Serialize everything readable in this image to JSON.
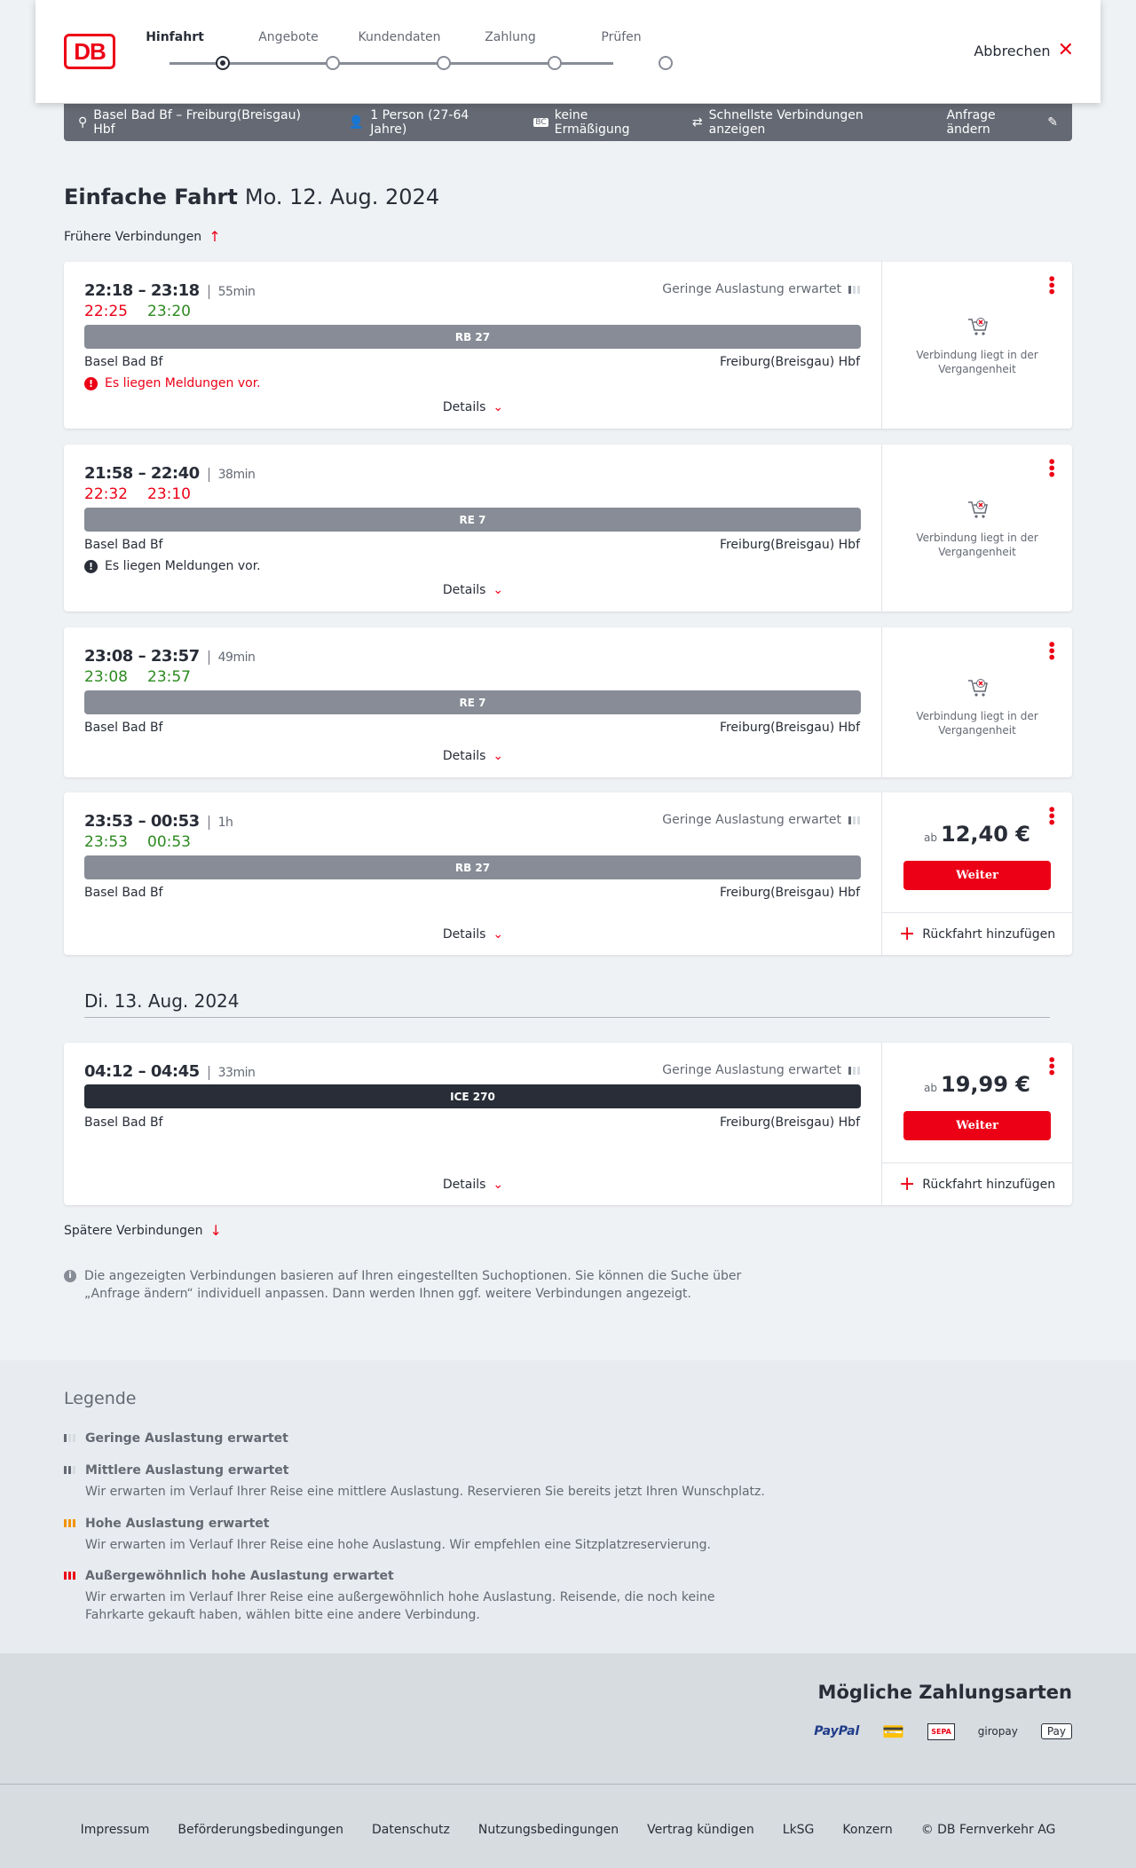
{
  "header": {
    "logo": "DB",
    "steps": [
      "Hinfahrt",
      "Angebote",
      "Kundendaten",
      "Zahlung",
      "Prüfen"
    ],
    "active_step": 0,
    "cancel": "Abbrechen"
  },
  "infobar": {
    "route": "Basel Bad Bf – Freiburg(Breisgau) Hbf",
    "persons": "1 Person (27-64 Jahre)",
    "discount": "keine Ermäßigung",
    "fastest": "Schnellste Verbindungen anzeigen",
    "edit": "Anfrage ändern"
  },
  "title": {
    "type": "Einfache Fahrt",
    "date": "Mo. 12. Aug. 2024"
  },
  "earlier": "Frühere Verbindungen",
  "later": "Spätere Verbindungen",
  "common": {
    "from": "Basel Bad Bf",
    "to": "Freiburg(Breisgau) Hbf",
    "details": "Details",
    "past": "Verbindung liegt in der Vergangenheit",
    "load_low": "Geringe Auslastung erwartet",
    "price_prefix": "ab",
    "weiter": "Weiter",
    "return": "Rückfahrt hinzufügen"
  },
  "connections": [
    {
      "times": "22:18 – 23:18",
      "duration": "55min",
      "rt_dep": "22:25",
      "rt_arr": "23:20",
      "rt_dep_color": "red",
      "rt_arr_color": "green",
      "train": "RB 27",
      "load": "Geringe Auslastung erwartet",
      "message": "Es liegen Meldungen vor.",
      "message_color": "#ec0016",
      "status": "past"
    },
    {
      "times": "21:58 – 22:40",
      "duration": "38min",
      "rt_dep": "22:32",
      "rt_arr": "23:10",
      "rt_dep_color": "red",
      "rt_arr_color": "red",
      "train": "RE 7",
      "message": "Es liegen Meldungen vor.",
      "message_color": "#282d37",
      "status": "past"
    },
    {
      "times": "23:08 – 23:57",
      "duration": "49min",
      "rt_dep": "23:08",
      "rt_arr": "23:57",
      "rt_dep_color": "green",
      "rt_arr_color": "green",
      "train": "RE 7",
      "status": "past"
    },
    {
      "times": "23:53 – 00:53",
      "duration": "1h",
      "rt_dep": "23:53",
      "rt_arr": "00:53",
      "rt_dep_color": "green",
      "rt_arr_color": "green",
      "train": "RB 27",
      "load": "Geringe Auslastung erwartet",
      "price": "12,40 €",
      "status": "bookable"
    }
  ],
  "date2": "Di. 13. Aug. 2024",
  "connection5": {
    "times": "04:12 – 04:45",
    "duration": "33min",
    "train": "ICE 270",
    "load": "Geringe Auslastung erwartet",
    "price": "19,99 €"
  },
  "note": "Die angezeigten Verbindungen basieren auf Ihren eingestellten Suchoptionen. Sie können die Suche über „Anfrage ändern“ individuell anpassen. Dann werden Ihnen ggf. weitere Verbindungen angezeigt.",
  "legend": {
    "title": "Legende",
    "items": [
      {
        "title": "Geringe Auslastung erwartet",
        "desc": ""
      },
      {
        "title": "Mittlere Auslastung erwartet",
        "desc": "Wir erwarten im Verlauf Ihrer Reise eine mittlere Auslastung. Reservieren Sie bereits jetzt Ihren Wunschplatz."
      },
      {
        "title": "Hohe Auslastung erwartet",
        "desc": "Wir erwarten im Verlauf Ihrer Reise eine hohe Auslastung. Wir empfehlen eine Sitzplatzreservierung."
      },
      {
        "title": "Außergewöhnlich hohe Auslastung erwartet",
        "desc": "Wir erwarten im Verlauf Ihrer Reise eine außergewöhnlich hohe Auslastung. Reisende, die noch keine Fahrkarte gekauft haben, wählen bitte eine andere Verbindung."
      }
    ]
  },
  "payment": {
    "title": "Mögliche Zahlungsarten",
    "methods": [
      "PayPal",
      "Kreditkarte",
      "SEPA",
      "giropay",
      "Pay"
    ]
  },
  "footer": [
    "Impressum",
    "Beförderungsbedingungen",
    "Datenschutz",
    "Nutzungsbedingungen",
    "Vertrag kündigen",
    "LkSG",
    "Konzern",
    "© DB Fernverkehr AG"
  ],
  "colors": {
    "brand_red": "#ec0016",
    "delay_red": "#ec0016",
    "ontime_green": "#2c8a1f",
    "infobar": "#646973",
    "train_bar": "#878c96",
    "ice_bar": "#282d37",
    "load_high": "#f39200"
  }
}
